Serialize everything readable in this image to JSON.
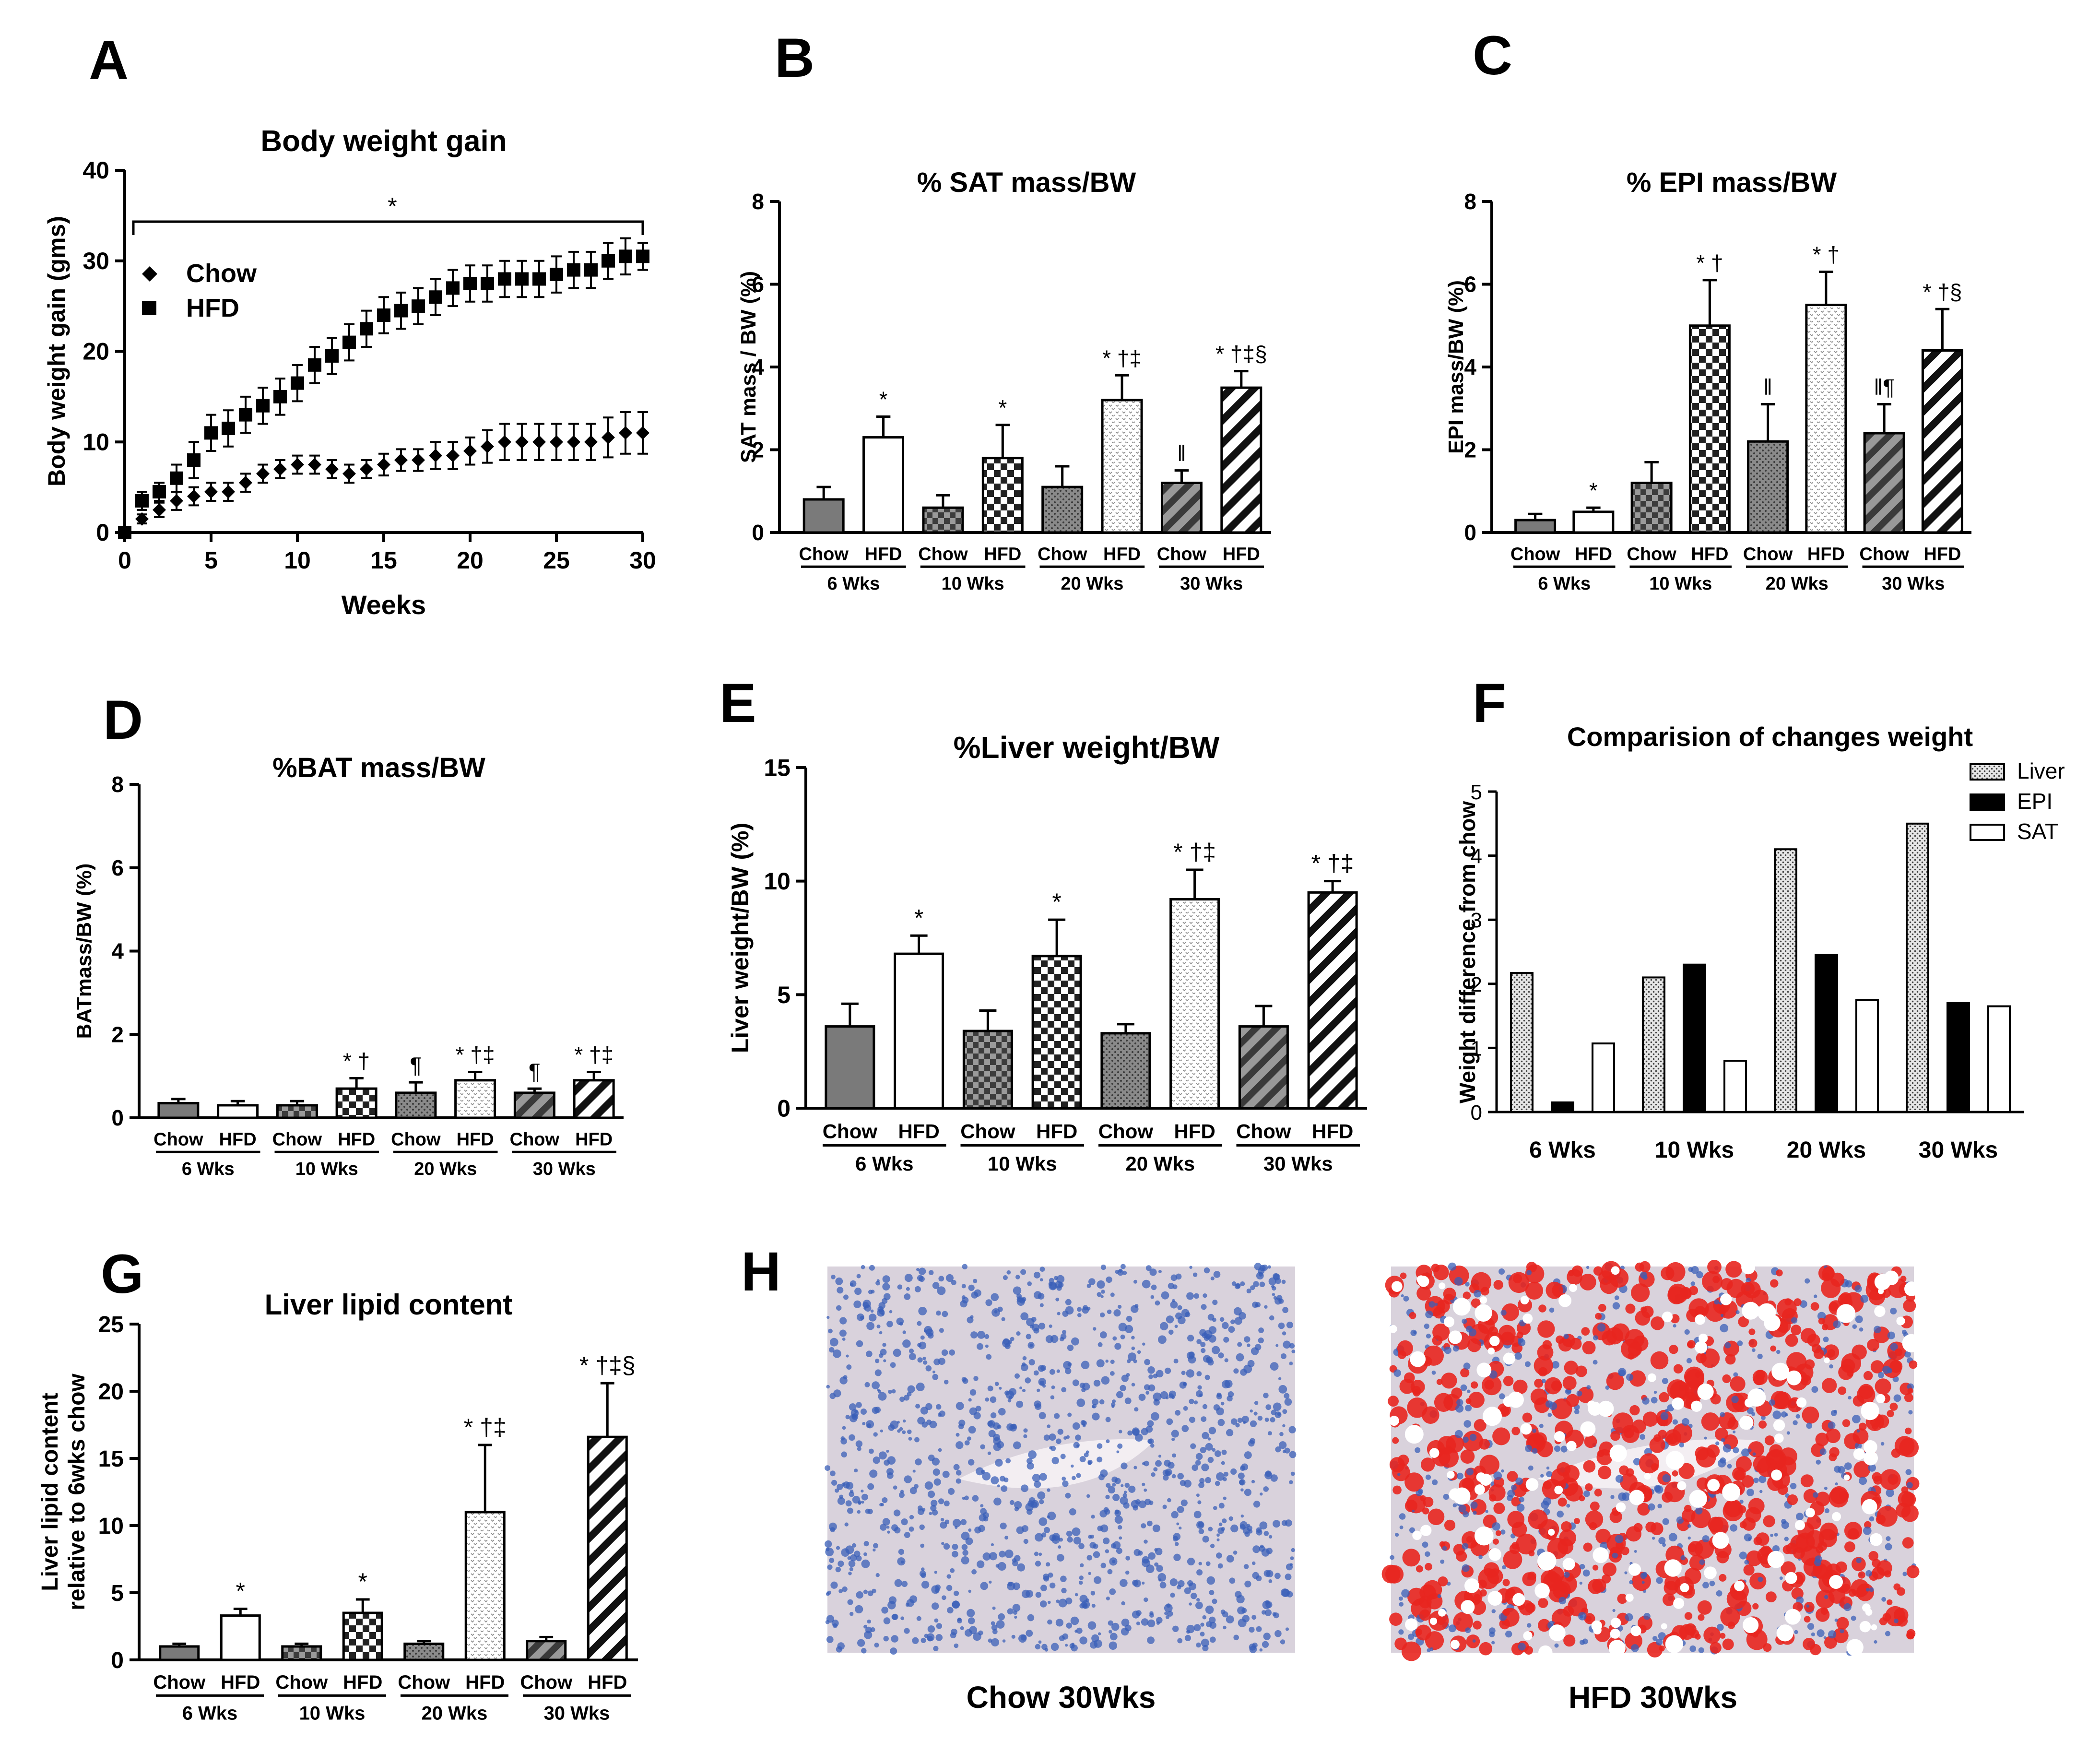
{
  "colors": {
    "black": "#000000",
    "chow_fill": "#7a7a7a",
    "white": "#ffffff",
    "liver_stain_blue": "#3a5fb8",
    "lipid_red": "#e8261f",
    "tissue_bg": "#d9d2dc"
  },
  "chart_data": [
    {
      "panel": "A",
      "type": "line",
      "title": "Body weight gain",
      "xlabel": "Weeks",
      "ylabel": "Body weight gain (gms)",
      "xlim": [
        0,
        30
      ],
      "ylim": [
        0,
        40
      ],
      "xticks": [
        "0",
        "5",
        "10",
        "15",
        "20",
        "25",
        "30"
      ],
      "yticks": [
        "0",
        "10",
        "20",
        "30",
        "40"
      ],
      "significance": "*",
      "x": [
        0,
        1,
        2,
        3,
        4,
        5,
        6,
        7,
        8,
        9,
        10,
        11,
        12,
        13,
        14,
        15,
        16,
        17,
        18,
        19,
        20,
        21,
        22,
        23,
        24,
        25,
        26,
        27,
        28,
        29,
        30
      ],
      "series": [
        {
          "name": "Chow",
          "marker": "diamond",
          "values": [
            0,
            1.5,
            2.5,
            3.5,
            4,
            4.5,
            4.5,
            5.5,
            6.5,
            7,
            7.5,
            7.5,
            7,
            6.5,
            7,
            7.5,
            8,
            8,
            8.5,
            8.5,
            9,
            9.5,
            10,
            10,
            10,
            10,
            10,
            10,
            10.5,
            11,
            11
          ],
          "errors": [
            0,
            0.5,
            0.8,
            1,
            1,
            1,
            1,
            1,
            1,
            1,
            1,
            1,
            1,
            1,
            1,
            1.2,
            1.2,
            1.2,
            1.5,
            1.5,
            1.5,
            1.8,
            2,
            2,
            2,
            2,
            2,
            2,
            2.2,
            2.3,
            2.3
          ]
        },
        {
          "name": "HFD",
          "marker": "square",
          "values": [
            0,
            3.5,
            4.5,
            6,
            8,
            11,
            11.5,
            13,
            14,
            15,
            16.5,
            18.5,
            19.5,
            21,
            22.5,
            24,
            24.5,
            25,
            26,
            27,
            27.5,
            27.5,
            28,
            28,
            28,
            28.5,
            29,
            29,
            30,
            30.5,
            30.5
          ],
          "errors": [
            0,
            1,
            1,
            1.5,
            2,
            2,
            2,
            2,
            2,
            2,
            2,
            2,
            2,
            2,
            2,
            2,
            2,
            2,
            2,
            2,
            2,
            2,
            2,
            2,
            2,
            2,
            2,
            2,
            2,
            2,
            1.5
          ]
        }
      ]
    },
    {
      "panel": "B",
      "type": "bar",
      "title": "% SAT mass/BW",
      "ylabel": "SAT mass / BW (%)",
      "ylim": [
        0,
        8
      ],
      "yticks": [
        "0",
        "2",
        "4",
        "6",
        "8"
      ],
      "bar_labels": [
        "Chow",
        "HFD",
        "Chow",
        "HFD",
        "Chow",
        "HFD",
        "Chow",
        "HFD"
      ],
      "groups": [
        "6 Wks",
        "10 Wks",
        "20 Wks",
        "30 Wks"
      ],
      "values": [
        0.8,
        2.3,
        0.6,
        1.8,
        1.1,
        3.2,
        1.2,
        3.5
      ],
      "errors": [
        0.3,
        0.5,
        0.3,
        0.8,
        0.5,
        0.6,
        0.3,
        0.4
      ],
      "annotations": [
        "",
        "*",
        "",
        "*",
        "",
        "* †‡",
        "‖",
        "* †‡§"
      ]
    },
    {
      "panel": "C",
      "type": "bar",
      "title": "% EPI mass/BW",
      "ylabel": "EPI mass/BW (%)",
      "ylim": [
        0,
        8
      ],
      "yticks": [
        "0",
        "2",
        "4",
        "6",
        "8"
      ],
      "bar_labels": [
        "Chow",
        "HFD",
        "Chow",
        "HFD",
        "Chow",
        "HFD",
        "Chow",
        "HFD"
      ],
      "groups": [
        "6 Wks",
        "10 Wks",
        "20 Wks",
        "30 Wks"
      ],
      "values": [
        0.3,
        0.5,
        1.2,
        5.0,
        2.2,
        5.5,
        2.4,
        4.4
      ],
      "errors": [
        0.15,
        0.1,
        0.5,
        1.1,
        0.9,
        0.8,
        0.7,
        1.0
      ],
      "annotations": [
        "",
        "*",
        "",
        "* †",
        "‖",
        "* †",
        "‖¶",
        "* †§"
      ]
    },
    {
      "panel": "D",
      "type": "bar",
      "title": "%BAT mass/BW",
      "ylabel": "BATmass/BW (%)",
      "ylim": [
        0,
        8
      ],
      "yticks": [
        "0",
        "2",
        "4",
        "6",
        "8"
      ],
      "bar_labels": [
        "Chow",
        "HFD",
        "Chow",
        "HFD",
        "Chow",
        "HFD",
        "Chow",
        "HFD"
      ],
      "groups": [
        "6 Wks",
        "10 Wks",
        "20 Wks",
        "30 Wks"
      ],
      "values": [
        0.35,
        0.3,
        0.3,
        0.7,
        0.6,
        0.9,
        0.6,
        0.9
      ],
      "errors": [
        0.1,
        0.1,
        0.1,
        0.25,
        0.25,
        0.2,
        0.1,
        0.2
      ],
      "annotations": [
        "",
        "",
        "",
        "* †",
        "¶",
        "* †‡",
        "¶",
        "* †‡"
      ]
    },
    {
      "panel": "E",
      "type": "bar",
      "title": "%Liver weight/BW",
      "ylabel": "Liver weight/BW (%)",
      "ylim": [
        0,
        15
      ],
      "yticks": [
        "0",
        "5",
        "10",
        "15"
      ],
      "bar_labels": [
        "Chow",
        "HFD",
        "Chow",
        "HFD",
        "Chow",
        "HFD",
        "Chow",
        "HFD"
      ],
      "groups": [
        "6 Wks",
        "10 Wks",
        "20 Wks",
        "30 Wks"
      ],
      "values": [
        3.6,
        6.8,
        3.4,
        6.7,
        3.3,
        9.2,
        3.6,
        9.5
      ],
      "errors": [
        1.0,
        0.8,
        0.9,
        1.6,
        0.4,
        1.3,
        0.9,
        0.5
      ],
      "annotations": [
        "",
        "*",
        "",
        "*",
        "",
        "* †‡",
        "",
        "* †‡"
      ]
    },
    {
      "panel": "F",
      "type": "bar",
      "title": "Comparision of changes weight",
      "ylabel": "Weight difference from chow",
      "ylim": [
        0,
        5
      ],
      "yticks": [
        "0",
        "1",
        "2",
        "3",
        "4",
        "5"
      ],
      "categories": [
        "6 Wks",
        "10 Wks",
        "20 Wks",
        "30 Wks"
      ],
      "series": [
        {
          "name": "Liver",
          "values": [
            2.17,
            2.1,
            4.1,
            4.5
          ]
        },
        {
          "name": "EPI",
          "values": [
            0.15,
            2.3,
            2.45,
            1.7
          ]
        },
        {
          "name": "SAT",
          "values": [
            1.07,
            0.8,
            1.75,
            1.65
          ]
        }
      ],
      "legend": "top-right"
    },
    {
      "panel": "G",
      "type": "bar",
      "title": "Liver lipid content",
      "ylabel_lines": [
        "Liver lipid content",
        "relative to 6wks chow"
      ],
      "ylim": [
        0,
        25
      ],
      "yticks": [
        "0",
        "5",
        "10",
        "15",
        "20",
        "25"
      ],
      "bar_labels": [
        "Chow",
        "HFD",
        "Chow",
        "HFD",
        "Chow",
        "HFD",
        "Chow",
        "HFD"
      ],
      "groups": [
        "6 Wks",
        "10 Wks",
        "20 Wks",
        "30 Wks"
      ],
      "values": [
        1.0,
        3.3,
        1.0,
        3.5,
        1.2,
        11.0,
        1.4,
        16.6
      ],
      "errors": [
        0.2,
        0.5,
        0.2,
        1.0,
        0.2,
        5.0,
        0.3,
        4.0
      ],
      "annotations": [
        "",
        "*",
        "",
        "*",
        "",
        "* †‡",
        "",
        "* †‡§"
      ]
    }
  ],
  "panel_letters": [
    "A",
    "B",
    "C",
    "D",
    "E",
    "F",
    "G",
    "H"
  ],
  "micrographs": {
    "chow_caption": "Chow 30Wks",
    "hfd_caption": "HFD 30Wks"
  }
}
